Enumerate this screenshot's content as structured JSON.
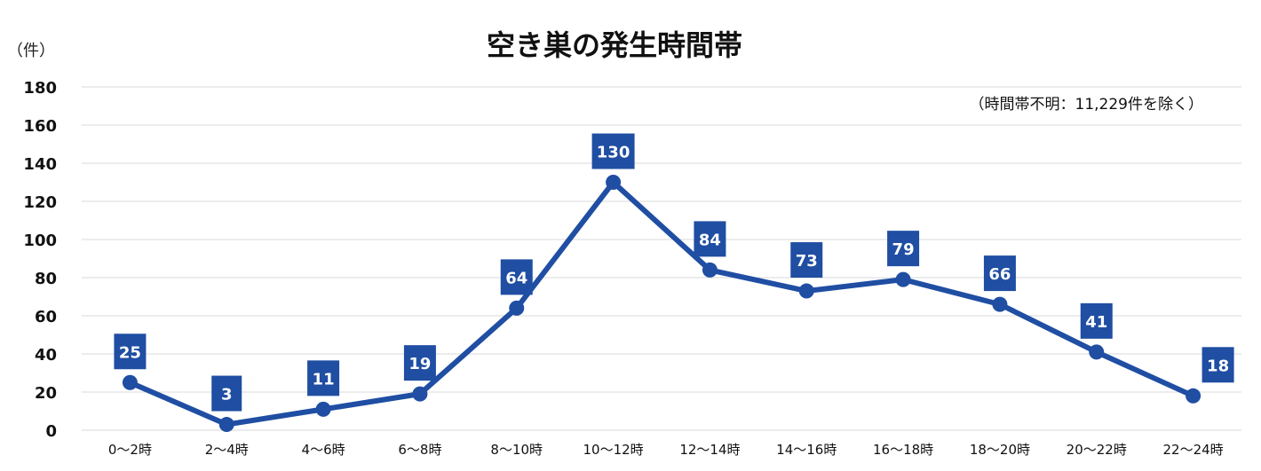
{
  "chart_data": {
    "type": "line",
    "title": "空き巣の発生時間帯",
    "ylabel": "（件）",
    "note": "（時間帯不明：11,229件を除く）",
    "categories": [
      "0～2時",
      "2～4時",
      "4～6時",
      "6～8時",
      "8～10時",
      "10～12時",
      "12～14時",
      "14～16時",
      "16～18時",
      "18～20時",
      "20～22時",
      "22～24時"
    ],
    "series": [
      {
        "values": [
          25,
          3,
          11,
          19,
          64,
          130,
          84,
          73,
          79,
          66,
          41,
          18
        ],
        "color": "#1f4ea3"
      }
    ],
    "data_labels": [
      "25",
      "3",
      "11",
      "19",
      "64",
      "130",
      "84",
      "73",
      "79",
      "66",
      "41",
      "18"
    ],
    "ylim": [
      0,
      180
    ],
    "yticks": [
      0,
      20,
      40,
      60,
      80,
      100,
      120,
      140,
      160,
      180
    ],
    "ytick_labels": [
      "0",
      "20",
      "40",
      "60",
      "80",
      "100",
      "120",
      "140",
      "160",
      "180"
    ],
    "grid": true,
    "legend": "none"
  }
}
